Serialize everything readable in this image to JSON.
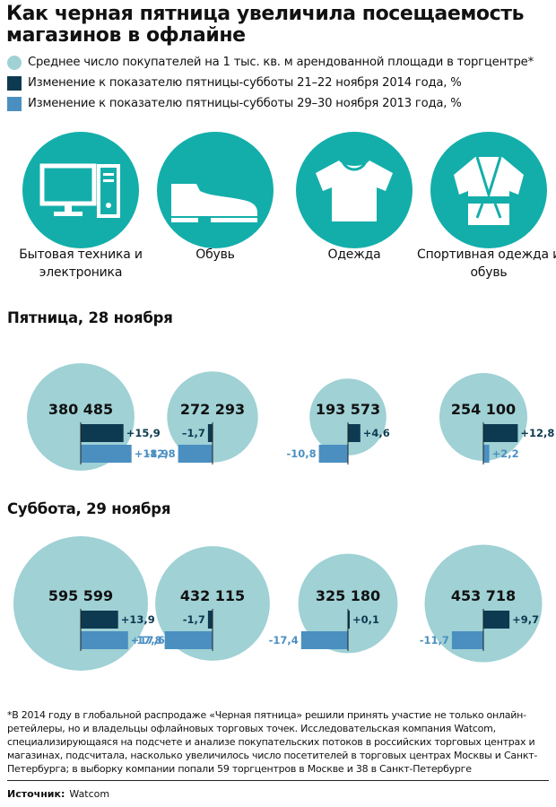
{
  "title": "Как черная пятница увеличила посещаемость магазинов в офлайне",
  "legend": [
    {
      "label": "Среднее число покупателей на 1 тыс. кв. м арендованной площади в торгцентре*",
      "color": "#9fd1d5"
    },
    {
      "label": "Изменение к показателю пятницы-субботы 21–22 ноября 2014 года, %",
      "color": "#0d3a50"
    },
    {
      "label": "Изменение к показателю пятницы-субботы 29–30 ноября 2013 года, %",
      "color": "#4b8fc1"
    }
  ],
  "categories": [
    {
      "label": "Бытовая техника и электроника",
      "icon": "computer-icon"
    },
    {
      "label": "Обувь",
      "icon": "shoe-icon"
    },
    {
      "label": "Одежда",
      "icon": "tshirt-icon"
    },
    {
      "label": "Спортивная одежда и обувь",
      "icon": "kimono-icon"
    }
  ],
  "colors": {
    "accent": "#14aeaa",
    "bubble": "#9fd1d5",
    "dark": "#0d3a50",
    "light": "#4b8fc1"
  },
  "chart_data": {
    "type": "bubble",
    "categories": [
      "Бытовая техника и электроника",
      "Обувь",
      "Одежда",
      "Спортивная одежда и обувь"
    ],
    "panels": [
      {
        "title": "Пятница, 28 ноября",
        "visitors": [
          380485,
          272293,
          193573,
          254100
        ],
        "visitors_labels": [
          "380 485",
          "272 293",
          "193 573",
          "254 100"
        ],
        "series": [
          {
            "name": "Изменение к показателю пятницы-субботы 21–22 ноября 2014 года, %",
            "values": [
              15.9,
              -1.7,
              4.6,
              12.8
            ],
            "labels": [
              "+15,9",
              "–1,7",
              "+4,6",
              "+12,8"
            ]
          },
          {
            "name": "Изменение к показателю пятницы-субботы 29–30 ноября 2013 года, %",
            "values": [
              18.9,
              -12.8,
              -10.8,
              2.2
            ],
            "labels": [
              "+18,9",
              "-12,8",
              "-10,8",
              "+2,2"
            ]
          }
        ]
      },
      {
        "title": "Суббота, 29 ноября",
        "visitors": [
          595599,
          432115,
          325180,
          453718
        ],
        "visitors_labels": [
          "595 599",
          "432 115",
          "325 180",
          "453 718"
        ],
        "series": [
          {
            "name": "Изменение к показателю пятницы-субботы 21–22 ноября 2014 года, %",
            "values": [
              13.9,
              -1.7,
              0.1,
              9.7
            ],
            "labels": [
              "+13,9",
              "-1,7",
              "+0,1",
              "+9,7"
            ]
          },
          {
            "name": "Изменение к показателю пятницы-субботы 29–30 ноября 2013 года, %",
            "values": [
              17.6,
              -17.8,
              -17.4,
              -11.7
            ],
            "labels": [
              "+17,6",
              "-17,8",
              "-17,4",
              "-11,7"
            ]
          }
        ]
      }
    ]
  },
  "footnote": "*В 2014 году в глобальной распродаже «Черная пятница» решили принять участие не только онлайн-ретейлеры, но и владельцы офлайновых торговых точек. Исследовательская компания Watcom, специализирующаяся на подсчете и анализе покупательских потоков в российских торговых центрах и магазинах, подсчитала, насколько увеличилось число посетителей в торговых центрах Москвы и Санкт-Петербурга; в выборку компании попали 59 торгцентров в Москве и 38 в Санкт-Петербурге",
  "source": {
    "label": "Источник:",
    "value": "Watcom"
  }
}
